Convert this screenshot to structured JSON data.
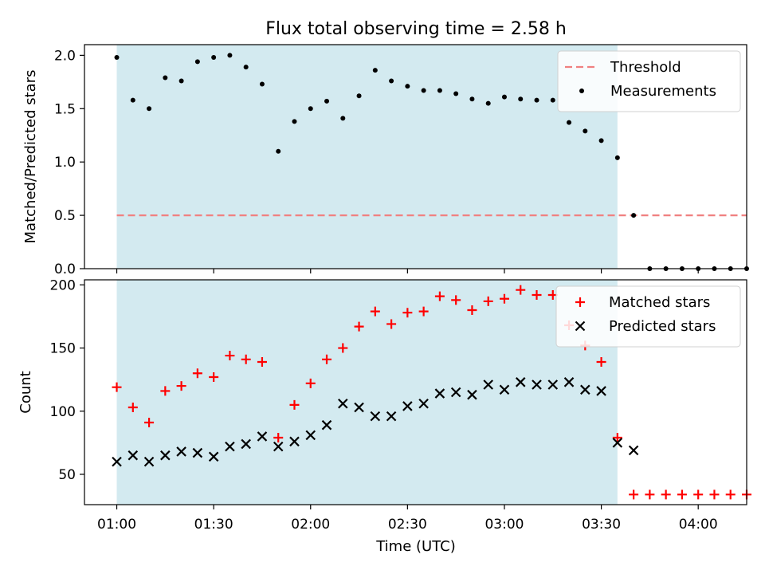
{
  "chart_data": {
    "type": "scatter",
    "title": "Flux total observing time = 2.58 h",
    "xlabel": "Time (UTC)",
    "x_ticks": [
      "01:00",
      "01:30",
      "02:00",
      "02:30",
      "03:00",
      "03:30",
      "04:00"
    ],
    "x_tick_minutes": [
      0,
      30,
      60,
      90,
      120,
      150,
      180
    ],
    "xlim_minutes": [
      -10,
      195
    ],
    "time": [
      "01:00",
      "01:05",
      "01:10",
      "01:15",
      "01:20",
      "01:25",
      "01:30",
      "01:35",
      "01:40",
      "01:45",
      "01:50",
      "01:55",
      "02:00",
      "02:05",
      "02:10",
      "02:15",
      "02:20",
      "02:25",
      "02:30",
      "02:35",
      "02:40",
      "02:45",
      "02:50",
      "02:55",
      "03:00",
      "03:05",
      "03:10",
      "03:15",
      "03:20",
      "03:25",
      "03:30",
      "03:35",
      "03:40",
      "03:45",
      "03:50",
      "03:55",
      "04:00",
      "04:05",
      "04:10",
      "04:15"
    ],
    "observing_span": [
      "01:00",
      "03:35"
    ],
    "observing_color": "#d3eaf0",
    "panels": [
      {
        "ylabel": "Matched/Predicted stars",
        "ylim": [
          0,
          2.1
        ],
        "yticks": [
          "0.0",
          "0.5",
          "1.0",
          "1.5",
          "2.0"
        ],
        "ytick_values": [
          0,
          0.5,
          1.0,
          1.5,
          2.0
        ],
        "legend_position": "upper right",
        "threshold": {
          "name": "Threshold",
          "value": 0.5,
          "color": "#f08080",
          "style": "dashed"
        },
        "series": [
          {
            "name": "Measurements",
            "marker": "dot",
            "color": "#000000",
            "values": [
              1.98,
              1.58,
              1.5,
              1.79,
              1.76,
              1.94,
              1.98,
              2.0,
              1.89,
              1.73,
              1.1,
              1.38,
              1.5,
              1.57,
              1.41,
              1.62,
              1.86,
              1.76,
              1.71,
              1.67,
              1.67,
              1.64,
              1.59,
              1.55,
              1.61,
              1.59,
              1.58,
              1.58,
              1.37,
              1.29,
              1.2,
              1.04,
              0.5,
              0,
              0,
              0,
              0,
              0,
              0,
              0
            ]
          }
        ]
      },
      {
        "ylabel": "Count",
        "ylim": [
          26,
          204
        ],
        "yticks": [
          "50",
          "100",
          "150",
          "200"
        ],
        "ytick_values": [
          50,
          100,
          150,
          200
        ],
        "legend_position": "upper right",
        "series": [
          {
            "name": "Matched stars",
            "marker": "plus",
            "color": "#ff0000",
            "values": [
              119,
              103,
              91,
              116,
              120,
              130,
              127,
              144,
              141,
              139,
              79,
              105,
              122,
              141,
              150,
              167,
              179,
              169,
              178,
              179,
              191,
              188,
              180,
              187,
              189,
              196,
              192,
              192,
              168,
              152,
              139,
              79,
              34,
              34,
              34,
              34,
              34,
              34,
              34,
              34
            ]
          },
          {
            "name": "Predicted stars",
            "marker": "x",
            "color": "#000000",
            "values": [
              60,
              65,
              60,
              65,
              68,
              67,
              64,
              72,
              74,
              80,
              72,
              76,
              81,
              89,
              106,
              103,
              96,
              96,
              104,
              106,
              114,
              115,
              113,
              121,
              117,
              123,
              121,
              121,
              123,
              117,
              116,
              75,
              69
            ]
          }
        ]
      }
    ]
  }
}
